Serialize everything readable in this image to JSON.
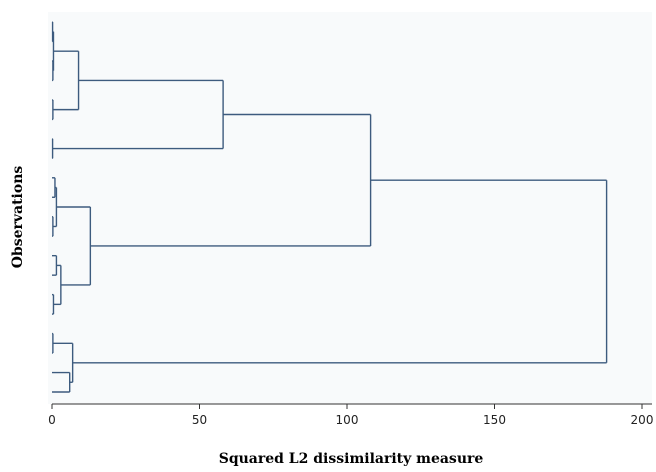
{
  "chart_data": {
    "type": "dendrogram",
    "orientation": "horizontal",
    "xlabel": "Squared L2 dissimilarity measure",
    "ylabel": "Observations",
    "xlim": [
      0,
      200
    ],
    "xticks": [
      0,
      50,
      100,
      150,
      200
    ],
    "grid": false,
    "colors": {
      "plot_background": "#f8fafb",
      "branch": "#3d5b7e",
      "axis": "#333333"
    },
    "leaf_count": 20,
    "merges": [
      {
        "id": 1,
        "left": "L0",
        "right": "L1",
        "height": 0.2
      },
      {
        "id": 2,
        "left": "L2",
        "right": "L3",
        "height": 0.3
      },
      {
        "id": 3,
        "left": "m1",
        "right": "m2",
        "height": 0.5
      },
      {
        "id": 4,
        "left": "L4",
        "right": "L5",
        "height": 0.3
      },
      {
        "id": 5,
        "left": "m3",
        "right": "m4",
        "height": 9
      },
      {
        "id": 6,
        "left": "L6",
        "right": "L7",
        "height": 0.2
      },
      {
        "id": 7,
        "left": "m5",
        "right": "m6",
        "height": 58
      },
      {
        "id": 8,
        "left": "L8",
        "right": "L9",
        "height": 1
      },
      {
        "id": 9,
        "left": "L10",
        "right": "L11",
        "height": 0.3
      },
      {
        "id": 10,
        "left": "m8",
        "right": "m9",
        "height": 1.5
      },
      {
        "id": 11,
        "left": "L12",
        "right": "L13",
        "height": 1.5
      },
      {
        "id": 12,
        "left": "L14",
        "right": "L15",
        "height": 0.5
      },
      {
        "id": 13,
        "left": "m11",
        "right": "m12",
        "height": 3
      },
      {
        "id": 14,
        "left": "m10",
        "right": "m13",
        "height": 13
      },
      {
        "id": 15,
        "left": "m7",
        "right": "m14",
        "height": 108
      },
      {
        "id": 16,
        "left": "L16",
        "right": "L17",
        "height": 0.3
      },
      {
        "id": 17,
        "left": "L18",
        "right": "L19",
        "height": 6
      },
      {
        "id": 18,
        "left": "m16",
        "right": "m17",
        "height": 7
      },
      {
        "id": 19,
        "left": "m15",
        "right": "m18",
        "height": 188
      }
    ]
  }
}
